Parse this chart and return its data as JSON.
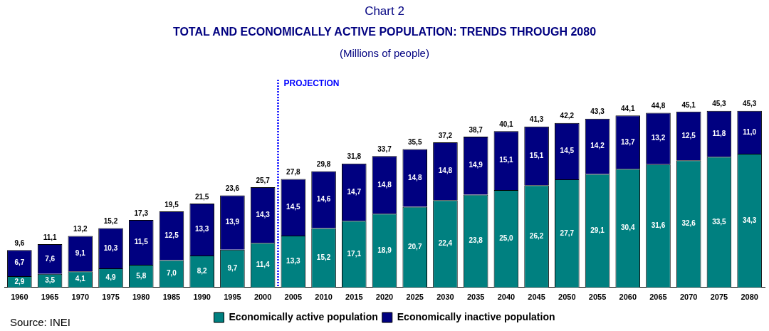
{
  "chart_data": {
    "type": "bar",
    "stacked": true,
    "title": "Chart 2",
    "subtitle": "TOTAL AND ECONOMICALLY ACTIVE POPULATION: TRENDS THROUGH 2080",
    "annotations": [
      "(Millions of people)",
      "Source: INEI"
    ],
    "categories": [
      "1960",
      "1965",
      "1970",
      "1975",
      "1980",
      "1985",
      "1990",
      "1995",
      "2000",
      "2005",
      "2010",
      "2015",
      "2020",
      "2025",
      "2030",
      "2035",
      "2040",
      "2045",
      "2050",
      "2055",
      "2060",
      "2065",
      "2070",
      "2075",
      "2080"
    ],
    "series": [
      {
        "name": "Economically active population",
        "color": "#008080",
        "values": [
          2.9,
          3.5,
          4.1,
          4.9,
          5.8,
          7.0,
          8.2,
          9.7,
          11.4,
          13.3,
          15.2,
          17.1,
          18.9,
          20.7,
          22.4,
          23.8,
          25.0,
          26.2,
          27.7,
          29.1,
          30.4,
          31.6,
          32.6,
          33.5,
          34.3
        ],
        "value_labels": [
          "2,9",
          "3,5",
          "4,1",
          "4,9",
          "5,8",
          "7,0",
          "8,2",
          "9,7",
          "11,4",
          "13,3",
          "15,2",
          "17,1",
          "18,9",
          "20,7",
          "22,4",
          "23,8",
          "25,0",
          "26,2",
          "27,7",
          "29,1",
          "30,4",
          "31,6",
          "32,6",
          "33,5",
          "34,3"
        ]
      },
      {
        "name": "Economically inactive population",
        "color": "#000080",
        "values": [
          6.7,
          7.6,
          9.1,
          10.3,
          11.5,
          12.5,
          13.3,
          13.9,
          14.3,
          14.5,
          14.6,
          14.7,
          14.8,
          14.8,
          14.8,
          14.9,
          15.1,
          15.1,
          14.5,
          14.2,
          13.7,
          13.2,
          12.5,
          11.8,
          11.0
        ],
        "value_labels": [
          "6,7",
          "7,6",
          "9,1",
          "10,3",
          "11,5",
          "12,5",
          "13,3",
          "13,9",
          "14,3",
          "14,5",
          "14,6",
          "14,7",
          "14,8",
          "14,8",
          "14,8",
          "14,9",
          "15,1",
          "15,1",
          "14,5",
          "14,2",
          "13,7",
          "13,2",
          "12,5",
          "11,8",
          "11,0"
        ]
      }
    ],
    "totals": [
      "9,6",
      "11,1",
      "13,2",
      "15,2",
      "17,3",
      "19,5",
      "21,5",
      "23,6",
      "25,7",
      "27,8",
      "29,8",
      "31,8",
      "33,7",
      "35,5",
      "37,2",
      "38,7",
      "40,1",
      "41,3",
      "42,2",
      "43,3",
      "44,1",
      "44,8",
      "45,1",
      "45,3",
      "45,3"
    ],
    "ref_lines": [
      {
        "axis": "x",
        "value": "2005",
        "label": "PROJECTION",
        "color": "#0000ff",
        "line_style": "dotted"
      }
    ],
    "tick_labels": "x",
    "grid": false,
    "legend": "bottom"
  }
}
